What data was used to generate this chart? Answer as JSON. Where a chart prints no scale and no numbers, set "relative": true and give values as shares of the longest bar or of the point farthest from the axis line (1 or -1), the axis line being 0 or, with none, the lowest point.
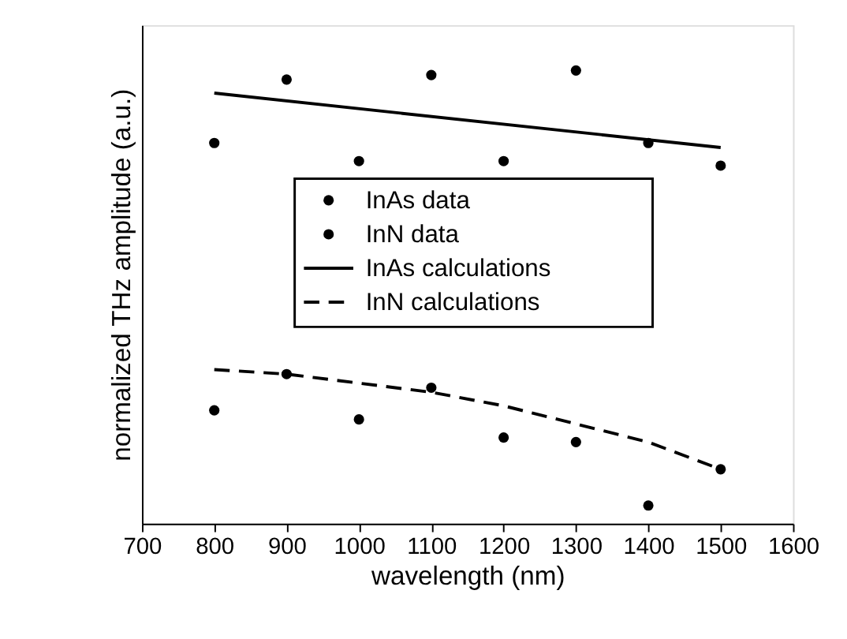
{
  "chart_data": {
    "type": "scatter",
    "relative": true,
    "xlabel": "wavelength (nm)",
    "ylabel": "normalized THz amplitude (a.u.)",
    "xlim": [
      700,
      1600
    ],
    "xticks": [
      700,
      800,
      900,
      1000,
      1100,
      1200,
      1300,
      1400,
      1500,
      1600
    ],
    "grid": false,
    "legend": "center",
    "x": [
      800,
      900,
      1000,
      1100,
      1200,
      1300,
      1400,
      1500
    ],
    "series": [
      {
        "name": "InAs data",
        "marker": "circle",
        "color": "#000000",
        "values": [
          0.84,
          0.98,
          0.8,
          0.99,
          0.8,
          1.0,
          0.84,
          0.79
        ]
      },
      {
        "name": "InN data",
        "marker": "circle",
        "color": "#000000",
        "values": [
          0.25,
          0.33,
          0.23,
          0.3,
          0.19,
          0.18,
          0.04,
          0.12
        ]
      },
      {
        "name": "InAs calculations",
        "type": "line",
        "line_style": "solid",
        "marker": "none",
        "color": "#000000",
        "x": [
          800,
          1500
        ],
        "values": [
          0.95,
          0.83
        ]
      },
      {
        "name": "InN calculations",
        "type": "line",
        "line_style": "dashed",
        "marker": "none",
        "color": "#000000",
        "values": [
          0.34,
          0.33,
          0.31,
          0.29,
          0.26,
          0.22,
          0.18,
          0.12
        ]
      }
    ]
  }
}
